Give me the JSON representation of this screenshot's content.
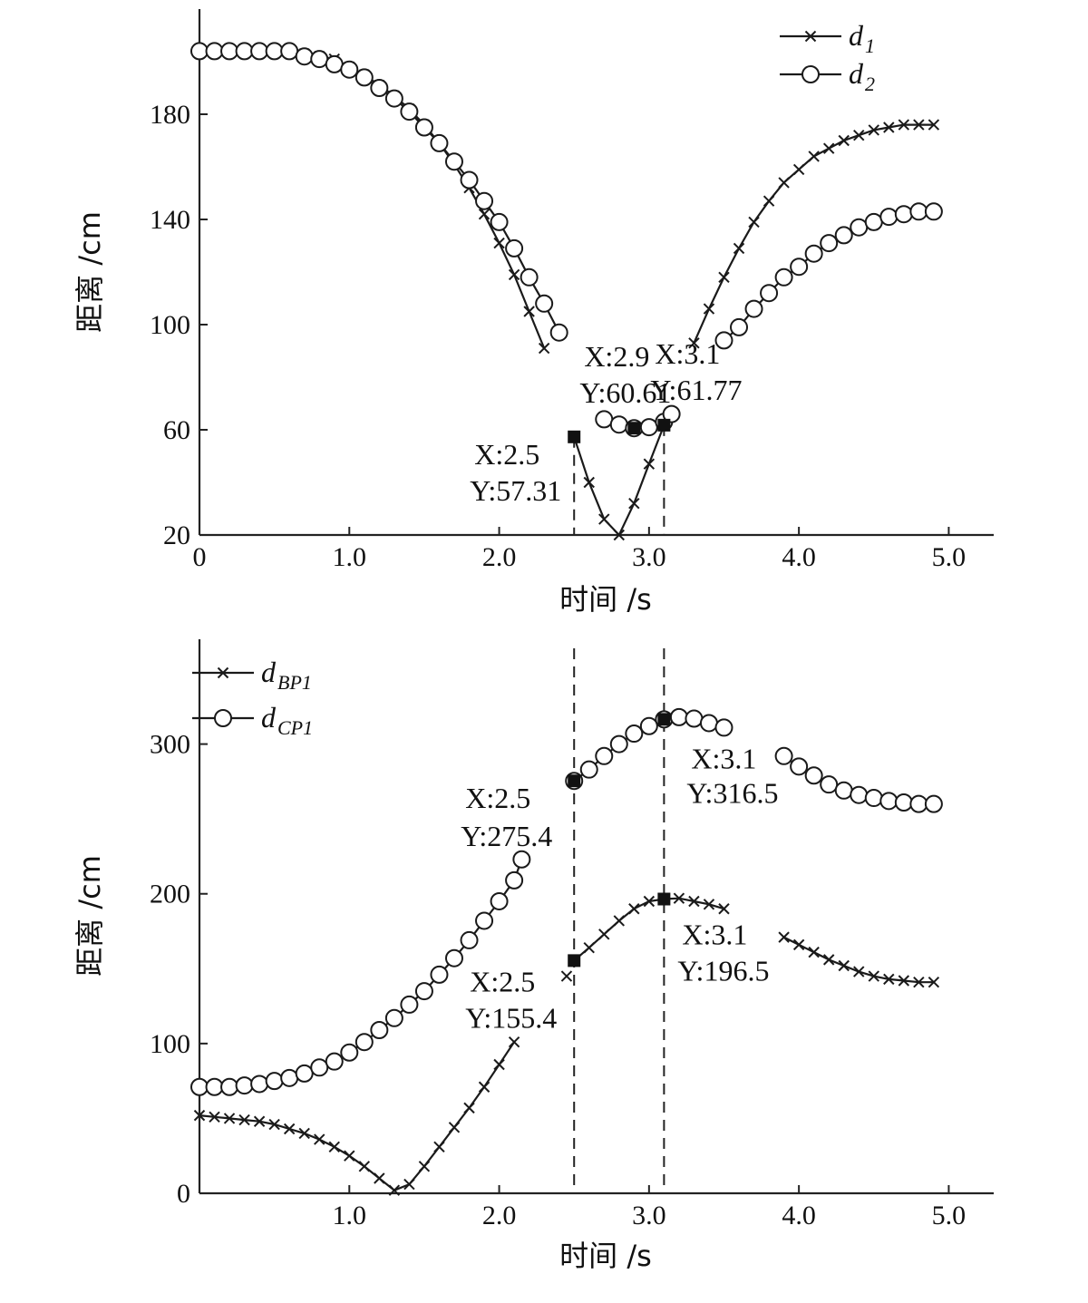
{
  "chart_data": [
    {
      "type": "line",
      "xlabel": "时间 /s",
      "ylabel": "距离 /cm",
      "xlim": [
        0,
        5.3
      ],
      "ylim": [
        20,
        220
      ],
      "x_ticks": [
        0,
        1.0,
        2.0,
        3.0,
        4.0,
        5.0
      ],
      "x_tick_labels": [
        "0",
        "1.0",
        "2.0",
        "3.0",
        "4.0",
        "5.0"
      ],
      "y_ticks": [
        20,
        60,
        100,
        140,
        180
      ],
      "y_tick_labels": [
        "20",
        "60",
        "100",
        "140",
        "180"
      ],
      "legend_position": "top-right",
      "series": [
        {
          "name": "d",
          "name_sub": "1",
          "marker": "x",
          "segments": [
            [
              [
                0,
                204
              ],
              [
                0.1,
                204
              ],
              [
                0.2,
                204
              ],
              [
                0.3,
                204
              ],
              [
                0.4,
                204
              ],
              [
                0.5,
                204
              ],
              [
                0.6,
                204
              ],
              [
                0.7,
                203
              ],
              [
                0.8,
                202
              ],
              [
                0.9,
                201
              ],
              [
                1.0,
                198
              ],
              [
                1.1,
                195
              ],
              [
                1.2,
                191
              ],
              [
                1.3,
                187
              ],
              [
                1.4,
                182
              ],
              [
                1.5,
                176
              ],
              [
                1.6,
                169
              ],
              [
                1.7,
                161
              ],
              [
                1.8,
                152
              ],
              [
                1.9,
                142
              ],
              [
                2.0,
                131
              ],
              [
                2.1,
                119
              ],
              [
                2.2,
                105
              ],
              [
                2.3,
                91
              ]
            ],
            [
              [
                2.5,
                57.31
              ],
              [
                2.6,
                40
              ],
              [
                2.7,
                26
              ],
              [
                2.8,
                20
              ],
              [
                2.9,
                32
              ],
              [
                3.0,
                47
              ],
              [
                3.1,
                61.77
              ]
            ],
            [
              [
                3.3,
                93
              ],
              [
                3.4,
                106
              ],
              [
                3.5,
                118
              ],
              [
                3.6,
                129
              ],
              [
                3.7,
                139
              ],
              [
                3.8,
                147
              ],
              [
                3.9,
                154
              ],
              [
                4.0,
                159
              ],
              [
                4.1,
                164
              ],
              [
                4.2,
                167
              ],
              [
                4.3,
                170
              ],
              [
                4.4,
                172
              ],
              [
                4.5,
                174
              ],
              [
                4.6,
                175
              ],
              [
                4.7,
                176
              ],
              [
                4.8,
                176
              ],
              [
                4.9,
                176
              ]
            ]
          ]
        },
        {
          "name": "d",
          "name_sub": "2",
          "marker": "o",
          "segments": [
            [
              [
                0,
                204
              ],
              [
                0.1,
                204
              ],
              [
                0.2,
                204
              ],
              [
                0.3,
                204
              ],
              [
                0.4,
                204
              ],
              [
                0.5,
                204
              ],
              [
                0.6,
                204
              ],
              [
                0.7,
                202
              ],
              [
                0.8,
                201
              ],
              [
                0.9,
                199
              ],
              [
                1.0,
                197
              ],
              [
                1.1,
                194
              ],
              [
                1.2,
                190
              ],
              [
                1.3,
                186
              ],
              [
                1.4,
                181
              ],
              [
                1.5,
                175
              ],
              [
                1.6,
                169
              ],
              [
                1.7,
                162
              ],
              [
                1.8,
                155
              ],
              [
                1.9,
                147
              ],
              [
                2.0,
                139
              ],
              [
                2.1,
                129
              ],
              [
                2.2,
                118
              ],
              [
                2.3,
                108
              ],
              [
                2.4,
                97
              ]
            ],
            [
              [
                2.7,
                64
              ],
              [
                2.8,
                62
              ],
              [
                2.9,
                60.61
              ],
              [
                3.0,
                61
              ],
              [
                3.1,
                63
              ],
              [
                3.15,
                66
              ]
            ],
            [
              [
                3.5,
                94
              ],
              [
                3.6,
                99
              ],
              [
                3.7,
                106
              ],
              [
                3.8,
                112
              ],
              [
                3.9,
                118
              ],
              [
                4.0,
                122
              ],
              [
                4.1,
                127
              ],
              [
                4.2,
                131
              ],
              [
                4.3,
                134
              ],
              [
                4.4,
                137
              ],
              [
                4.5,
                139
              ],
              [
                4.6,
                141
              ],
              [
                4.7,
                142
              ],
              [
                4.8,
                143
              ],
              [
                4.9,
                143
              ]
            ]
          ]
        }
      ],
      "data_tips": [
        {
          "x": 2.5,
          "y": 57.31,
          "label_x": "X:2.5",
          "label_y": "Y:57.31",
          "vline": true
        },
        {
          "x": 2.9,
          "y": 60.61,
          "label_x": "X:2.9",
          "label_y": "Y:60.61",
          "vline": false
        },
        {
          "x": 3.1,
          "y": 61.77,
          "label_x": "X:3.1",
          "label_y": "Y:61.77",
          "vline": true
        }
      ]
    },
    {
      "type": "line",
      "xlabel": "时间 /s",
      "ylabel": "距离 /cm",
      "xlim": [
        0,
        5.3
      ],
      "ylim": [
        0,
        370
      ],
      "x_ticks": [
        1.0,
        2.0,
        3.0,
        4.0,
        5.0
      ],
      "x_tick_labels": [
        "1.0",
        "2.0",
        "3.0",
        "4.0",
        "5.0"
      ],
      "y_ticks": [
        0,
        100,
        200,
        300
      ],
      "y_tick_labels": [
        "0",
        "100",
        "200",
        "300"
      ],
      "legend_position": "top-left",
      "series": [
        {
          "name": "d",
          "name_sub": "BP1",
          "marker": "x",
          "segments": [
            [
              [
                0,
                52
              ],
              [
                0.1,
                51
              ],
              [
                0.2,
                50
              ],
              [
                0.3,
                49
              ],
              [
                0.4,
                48
              ],
              [
                0.5,
                46
              ],
              [
                0.6,
                43
              ],
              [
                0.7,
                40
              ],
              [
                0.8,
                36
              ],
              [
                0.9,
                31
              ],
              [
                1.0,
                25
              ],
              [
                1.1,
                18
              ],
              [
                1.2,
                10
              ],
              [
                1.3,
                2
              ],
              [
                1.4,
                6
              ],
              [
                1.5,
                18
              ],
              [
                1.6,
                31
              ],
              [
                1.7,
                44
              ],
              [
                1.8,
                57
              ],
              [
                1.9,
                71
              ],
              [
                2.0,
                86
              ],
              [
                2.1,
                101
              ]
            ],
            [
              [
                2.45,
                145
              ]
            ],
            [
              [
                2.5,
                155.4
              ],
              [
                2.6,
                164
              ],
              [
                2.7,
                173
              ],
              [
                2.8,
                182
              ],
              [
                2.9,
                190
              ],
              [
                3.0,
                195
              ],
              [
                3.1,
                196.5
              ],
              [
                3.2,
                197
              ],
              [
                3.3,
                195
              ],
              [
                3.4,
                193
              ],
              [
                3.5,
                190
              ]
            ],
            [
              [
                3.9,
                171
              ],
              [
                4.0,
                166
              ],
              [
                4.1,
                161
              ],
              [
                4.2,
                156
              ],
              [
                4.3,
                152
              ],
              [
                4.4,
                148
              ],
              [
                4.5,
                145
              ],
              [
                4.6,
                143
              ],
              [
                4.7,
                142
              ],
              [
                4.8,
                141
              ],
              [
                4.9,
                141
              ]
            ]
          ]
        },
        {
          "name": "d",
          "name_sub": "CP1",
          "marker": "o",
          "segments": [
            [
              [
                0,
                71
              ],
              [
                0.1,
                71
              ],
              [
                0.2,
                71
              ],
              [
                0.3,
                72
              ],
              [
                0.4,
                73
              ],
              [
                0.5,
                75
              ],
              [
                0.6,
                77
              ],
              [
                0.7,
                80
              ],
              [
                0.8,
                84
              ],
              [
                0.9,
                88
              ],
              [
                1.0,
                94
              ],
              [
                1.1,
                101
              ],
              [
                1.2,
                109
              ],
              [
                1.3,
                117
              ],
              [
                1.4,
                126
              ],
              [
                1.5,
                135
              ],
              [
                1.6,
                146
              ],
              [
                1.7,
                157
              ],
              [
                1.8,
                169
              ],
              [
                1.9,
                182
              ],
              [
                2.0,
                195
              ],
              [
                2.1,
                209
              ],
              [
                2.15,
                223
              ]
            ],
            [
              [
                2.5,
                275.4
              ],
              [
                2.6,
                283
              ],
              [
                2.7,
                292
              ],
              [
                2.8,
                300
              ],
              [
                2.9,
                307
              ],
              [
                3.0,
                312
              ],
              [
                3.1,
                316.5
              ],
              [
                3.2,
                318
              ],
              [
                3.3,
                317
              ],
              [
                3.4,
                314
              ],
              [
                3.5,
                311
              ]
            ],
            [
              [
                3.9,
                292
              ],
              [
                4.0,
                285
              ],
              [
                4.1,
                279
              ],
              [
                4.2,
                273
              ],
              [
                4.3,
                269
              ],
              [
                4.4,
                266
              ],
              [
                4.5,
                264
              ],
              [
                4.6,
                262
              ],
              [
                4.7,
                261
              ],
              [
                4.8,
                260
              ],
              [
                4.9,
                260
              ]
            ]
          ]
        }
      ],
      "data_tips": [
        {
          "x": 2.5,
          "y": 275.4,
          "label_x": "X:2.5",
          "label_y": "Y:275.4",
          "vline": true
        },
        {
          "x": 3.1,
          "y": 316.5,
          "label_x": "X:3.1",
          "label_y": "Y:316.5",
          "vline": true
        },
        {
          "x": 2.5,
          "y": 155.4,
          "label_x": "X:2.5",
          "label_y": "Y:155.4",
          "vline": false
        },
        {
          "x": 3.1,
          "y": 196.5,
          "label_x": "X:3.1",
          "label_y": "Y:196.5",
          "vline": false
        }
      ]
    }
  ]
}
